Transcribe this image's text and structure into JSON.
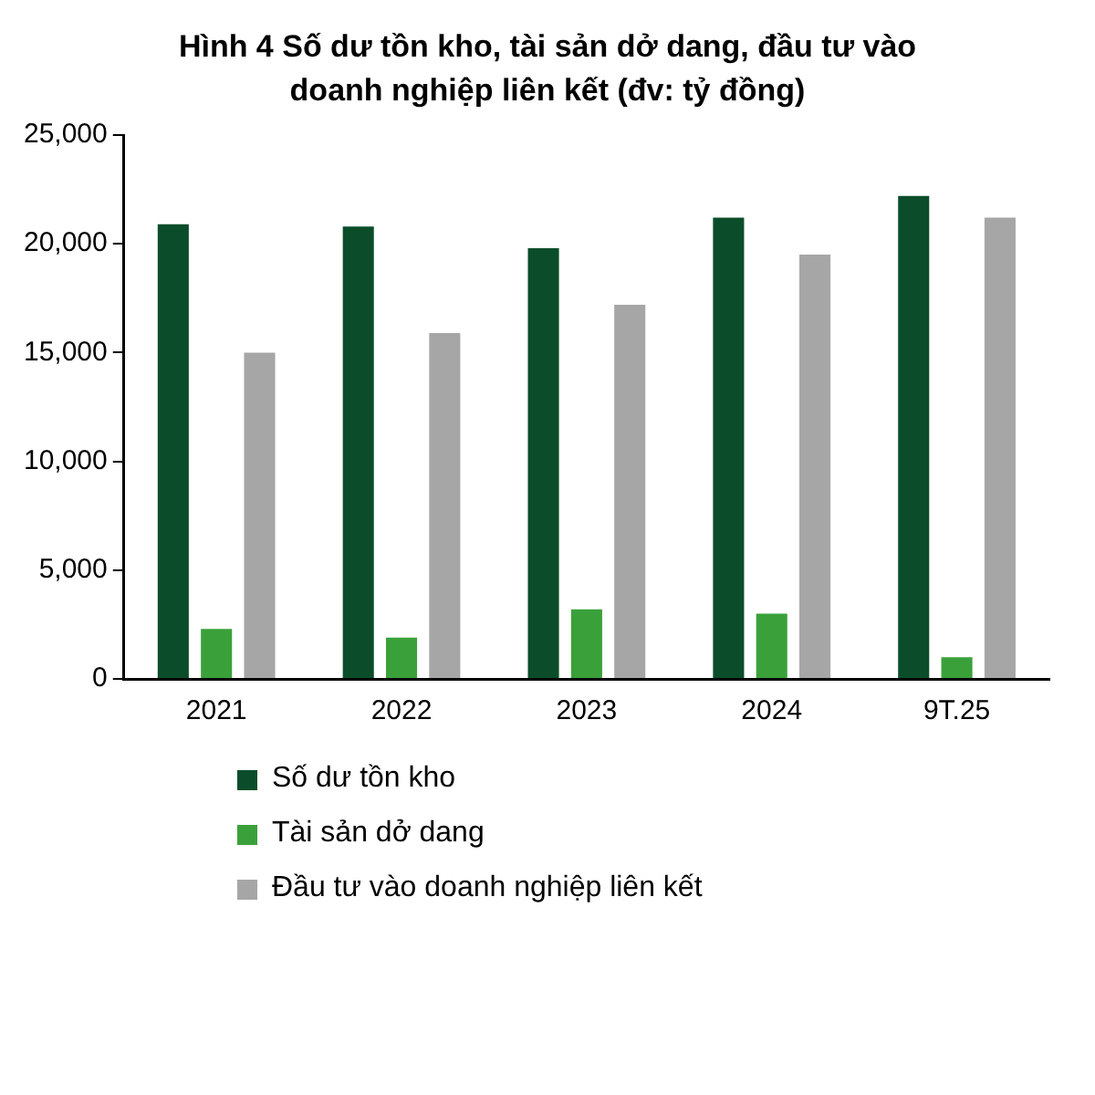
{
  "chart_data": {
    "type": "bar",
    "title": "Hình 4 Số dư tồn kho, tài sản dở dang, đầu tư vào doanh nghiệp liên kết (đv: tỷ đồng)",
    "categories": [
      "2021",
      "2022",
      "2023",
      "2024",
      "9T.25"
    ],
    "series": [
      {
        "name": "Số dư tồn kho",
        "color": "#0b4d2a",
        "values": [
          20900,
          20800,
          19800,
          21200,
          22200
        ]
      },
      {
        "name": "Tài sản dở dang",
        "color": "#3aa13a",
        "values": [
          2300,
          1900,
          3200,
          3000,
          1000
        ]
      },
      {
        "name": "Đầu tư vào doanh nghiệp liên kết",
        "color": "#a6a6a6",
        "values": [
          15000,
          15900,
          17200,
          19500,
          21200
        ]
      }
    ],
    "ylim": [
      0,
      25000
    ],
    "yticks": [
      0,
      {
        "value": 5000,
        "label": "5,000"
      },
      {
        "value": 10000,
        "label": "10,000"
      },
      {
        "value": 15000,
        "label": "15,000"
      },
      {
        "value": 20000,
        "label": "20,000"
      },
      {
        "value": 25000,
        "label": "25,000"
      }
    ],
    "grid": false,
    "legend": "bottom"
  }
}
